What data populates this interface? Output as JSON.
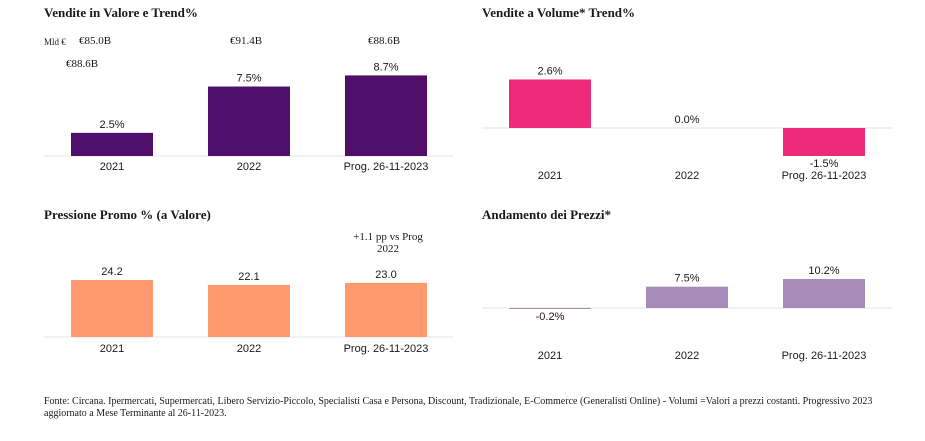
{
  "chart_data": [
    {
      "type": "bar",
      "title": "Vendite in Valore e Trend%",
      "unit_label": "Mld €",
      "value_labels": [
        "€85.0B",
        "€91.4B",
        "€88.6B"
      ],
      "extra_label": "€88.6B",
      "categories": [
        "2021",
        "2022",
        "Prog. 26-11-2023"
      ],
      "values": [
        2.5,
        7.5,
        8.7
      ],
      "data_labels": [
        "2.5%",
        "7.5%",
        "8.7%"
      ],
      "color": "#4f0f6b",
      "ylim": [
        0,
        9.5
      ]
    },
    {
      "type": "bar",
      "title": "Vendite a Volume* Trend%",
      "categories": [
        "2021",
        "2022",
        "Prog. 26-11-2023"
      ],
      "values": [
        2.6,
        0.0,
        -1.5
      ],
      "data_labels": [
        "2.6%",
        "0.0%",
        "-1.5%"
      ],
      "color": "#ee2b78",
      "ylim": [
        -2,
        3
      ]
    },
    {
      "type": "bar",
      "title": "Pressione Promo % (a Valore)",
      "annotation": [
        "+1.1 pp vs Prog",
        "2022"
      ],
      "categories": [
        "2021",
        "2022",
        "Prog. 26-11-2023"
      ],
      "values": [
        24.2,
        22.1,
        23.0
      ],
      "data_labels": [
        "24.2",
        "22.1",
        "23.0"
      ],
      "color": "#ff9a6e",
      "ylim": [
        0,
        24.2
      ]
    },
    {
      "type": "bar",
      "title": "Andamento dei Prezzi*",
      "categories": [
        "2021",
        "2022",
        "Prog. 26-11-2023"
      ],
      "values": [
        -0.2,
        7.5,
        10.2
      ],
      "data_labels": [
        "-0.2%",
        "7.5%",
        "10.2%"
      ],
      "color": "#a78bb9",
      "ylim": [
        -1,
        10.2
      ]
    }
  ],
  "footnote": "Fonte: Circana. Ipermercati, Supermercati, Libero Servizio-Piccolo, Specialisti Casa e Persona, Discount, Tradizionale, E-Commerce (Generalisti Online) - Volumi =Valori a prezzi costanti. Progressivo 2023 aggiornato a Mese Terminante al 26-11-2023."
}
